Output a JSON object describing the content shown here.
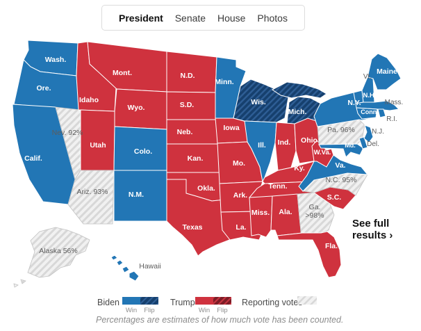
{
  "tabs": {
    "items": [
      {
        "id": "president",
        "label": "President",
        "active": true
      },
      {
        "id": "senate",
        "label": "Senate",
        "active": false
      },
      {
        "id": "house",
        "label": "House",
        "active": false
      },
      {
        "id": "photos",
        "label": "Photos",
        "active": false
      }
    ]
  },
  "map": {
    "states": [
      {
        "id": "wash",
        "label": "Wash.",
        "category": "biden-win"
      },
      {
        "id": "ore",
        "label": "Ore.",
        "category": "biden-win"
      },
      {
        "id": "calif",
        "label": "Calif.",
        "category": "biden-win"
      },
      {
        "id": "nev",
        "label": "Nev. 92%",
        "category": "reporting"
      },
      {
        "id": "idaho",
        "label": "Idaho",
        "category": "trump-win"
      },
      {
        "id": "mont",
        "label": "Mont.",
        "category": "trump-win"
      },
      {
        "id": "wyo",
        "label": "Wyo.",
        "category": "trump-win"
      },
      {
        "id": "utah",
        "label": "Utah",
        "category": "trump-win"
      },
      {
        "id": "colo",
        "label": "Colo.",
        "category": "biden-win"
      },
      {
        "id": "ariz",
        "label": "Ariz. 93%",
        "category": "reporting"
      },
      {
        "id": "nm",
        "label": "N.M.",
        "category": "biden-win"
      },
      {
        "id": "nd",
        "label": "N.D.",
        "category": "trump-win"
      },
      {
        "id": "sd",
        "label": "S.D.",
        "category": "trump-win"
      },
      {
        "id": "neb",
        "label": "Neb.",
        "category": "trump-win"
      },
      {
        "id": "kan",
        "label": "Kan.",
        "category": "trump-win"
      },
      {
        "id": "okla",
        "label": "Okla.",
        "category": "trump-win"
      },
      {
        "id": "texas",
        "label": "Texas",
        "category": "trump-win"
      },
      {
        "id": "minn",
        "label": "Minn.",
        "category": "biden-win"
      },
      {
        "id": "iowa",
        "label": "Iowa",
        "category": "trump-win"
      },
      {
        "id": "mo",
        "label": "Mo.",
        "category": "trump-win"
      },
      {
        "id": "ark",
        "label": "Ark.",
        "category": "trump-win"
      },
      {
        "id": "la",
        "label": "La.",
        "category": "trump-win"
      },
      {
        "id": "wis",
        "label": "Wis.",
        "category": "biden-flip"
      },
      {
        "id": "mich",
        "label": "Mich.",
        "category": "biden-flip"
      },
      {
        "id": "ill",
        "label": "Ill.",
        "category": "biden-win"
      },
      {
        "id": "ind",
        "label": "Ind.",
        "category": "trump-win"
      },
      {
        "id": "ohio",
        "label": "Ohio",
        "category": "trump-win"
      },
      {
        "id": "ky",
        "label": "Ky.",
        "category": "trump-win"
      },
      {
        "id": "tenn",
        "label": "Tenn.",
        "category": "trump-win"
      },
      {
        "id": "miss",
        "label": "Miss.",
        "category": "trump-win"
      },
      {
        "id": "ala",
        "label": "Ala.",
        "category": "trump-win"
      },
      {
        "id": "ga",
        "label": "Ga.",
        "label_line2": ">98%",
        "category": "reporting"
      },
      {
        "id": "fla",
        "label": "Fla.",
        "category": "trump-win"
      },
      {
        "id": "sc",
        "label": "S.C.",
        "category": "trump-win"
      },
      {
        "id": "nc",
        "label": "N.C. 95%",
        "category": "reporting"
      },
      {
        "id": "va",
        "label": "Va.",
        "category": "biden-win"
      },
      {
        "id": "wva",
        "label": "W.Va.",
        "category": "trump-win"
      },
      {
        "id": "pa",
        "label": "Pa. 96%",
        "category": "reporting"
      },
      {
        "id": "md",
        "label": "Md.",
        "category": "biden-win"
      },
      {
        "id": "del",
        "label": "Del.",
        "category": "biden-win"
      },
      {
        "id": "nj",
        "label": "N.J.",
        "category": "biden-win"
      },
      {
        "id": "ny",
        "label": "N.Y.",
        "category": "biden-win"
      },
      {
        "id": "vt",
        "label": "Vt.",
        "category": "biden-win"
      },
      {
        "id": "nh",
        "label": "N.H.",
        "category": "biden-win"
      },
      {
        "id": "maine",
        "label": "Maine",
        "category": "biden-win"
      },
      {
        "id": "mass",
        "label": "Mass.",
        "category": "biden-win"
      },
      {
        "id": "conn",
        "label": "Conn.",
        "category": "biden-win"
      },
      {
        "id": "ri",
        "label": "R.I.",
        "category": "biden-win"
      },
      {
        "id": "alaska",
        "label": "Alaska 56%",
        "category": "reporting"
      },
      {
        "id": "hawaii",
        "label": "Hawaii",
        "category": "biden-win"
      }
    ]
  },
  "see_full_results": {
    "line1": "See full",
    "line2": "results ›"
  },
  "legend": {
    "biden_label": "Biden",
    "trump_label": "Trump",
    "reporting_label": "Reporting votes",
    "win_label": "Win",
    "flip_label": "Flip"
  },
  "footer": {
    "note": "Percentages are estimates of how much vote has been counted."
  },
  "colors": {
    "biden": "#2276b5",
    "trump": "#cf323e",
    "biden_flip_base": "#16406e",
    "biden_flip_stripe": "#2e5e95",
    "trump_flip_base": "#7d1c26",
    "trump_flip_stripe": "#c43440",
    "reporting_base": "#f1f1f1",
    "reporting_stripe": "#d8d8d8",
    "reporting_border": "#c2c2c2",
    "map_label_light": "#ffffff",
    "map_label_dark": "#5d5d5d"
  }
}
